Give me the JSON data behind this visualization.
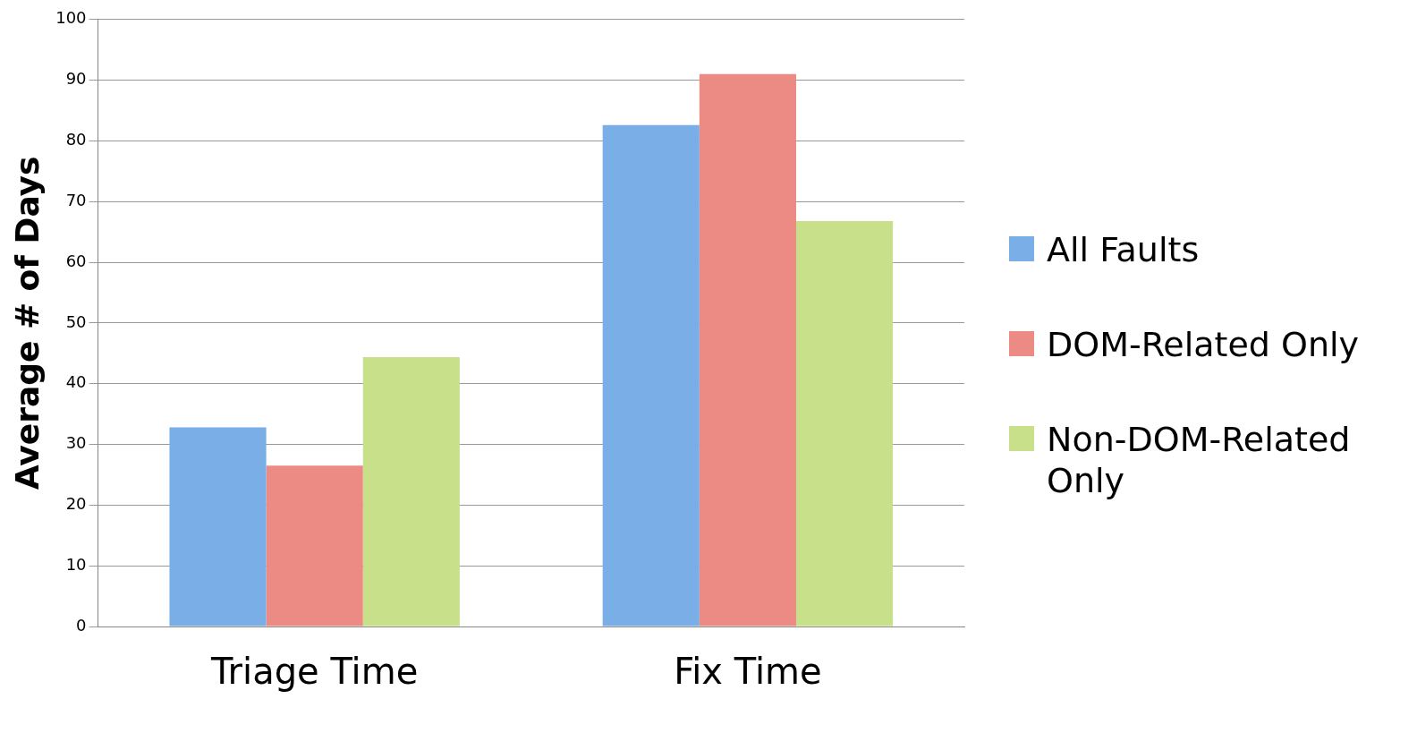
{
  "chart_data": {
    "type": "bar",
    "ylabel": "Average # of Days",
    "categories": [
      "Triage Time",
      "Fix Time"
    ],
    "series": [
      {
        "name": "All Faults",
        "color": "#7aaee6",
        "values": [
          32.8,
          82.6
        ]
      },
      {
        "name": "DOM-Related Only",
        "color": "#ec8a84",
        "values": [
          26.5,
          91.0
        ]
      },
      {
        "name": "Non-DOM-Related Only",
        "color": "#c8e08a",
        "values": [
          44.4,
          66.8
        ]
      }
    ],
    "ylim": [
      0,
      100
    ],
    "yticks": [
      0,
      10,
      20,
      30,
      40,
      50,
      60,
      70,
      80,
      90,
      100
    ],
    "grid": "y",
    "legend": "right"
  }
}
